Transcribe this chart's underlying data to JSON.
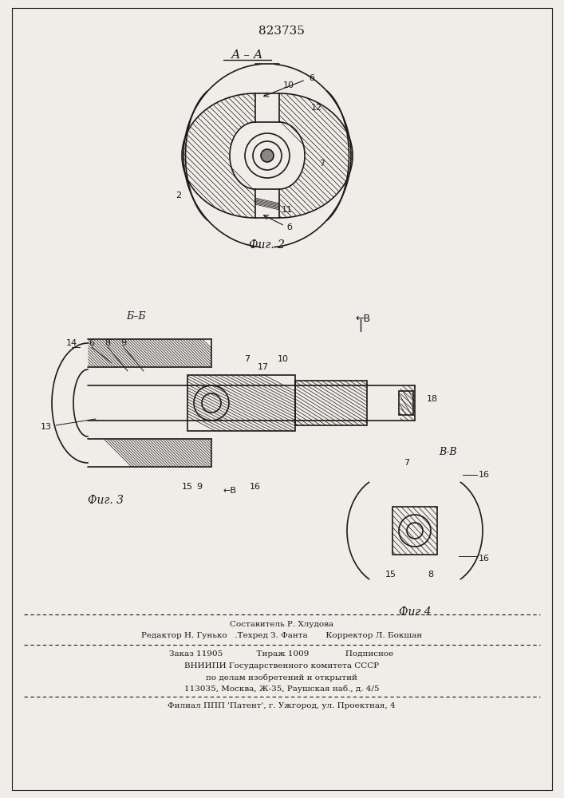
{
  "patent_number": "823735",
  "fig2_label": "А – А",
  "fig2_caption": "Фиг. 2",
  "fig3_caption": "Фиг. 3",
  "fig4_caption": "Фиг 4",
  "fig3_section_label": "Б–Б",
  "fig3_arrow_label": "В",
  "fig4_section_label": "В-В",
  "footer_line1": "Составитель Р. Хлудова",
  "footer_line2": "Редактор Н. Гунько   .Техред З. Фанта       Корректор Л. Бокшан",
  "footer_line3": "Заказ 11905             Тираж 1009              Подписное",
  "footer_line4": "ВНИИПИ Государственного комитета СССР",
  "footer_line5": "по делам изобретений и открытий",
  "footer_line6": "113035, Москва, Ж-35, Раушская наб., д. 4/5",
  "footer_line7": "Филиал ППП 'Патент', г. Ужгород, ул. Проектная, 4",
  "bg_color": "#f0ede8",
  "line_color": "#1a1a1a",
  "hatch_color": "#1a1a1a"
}
